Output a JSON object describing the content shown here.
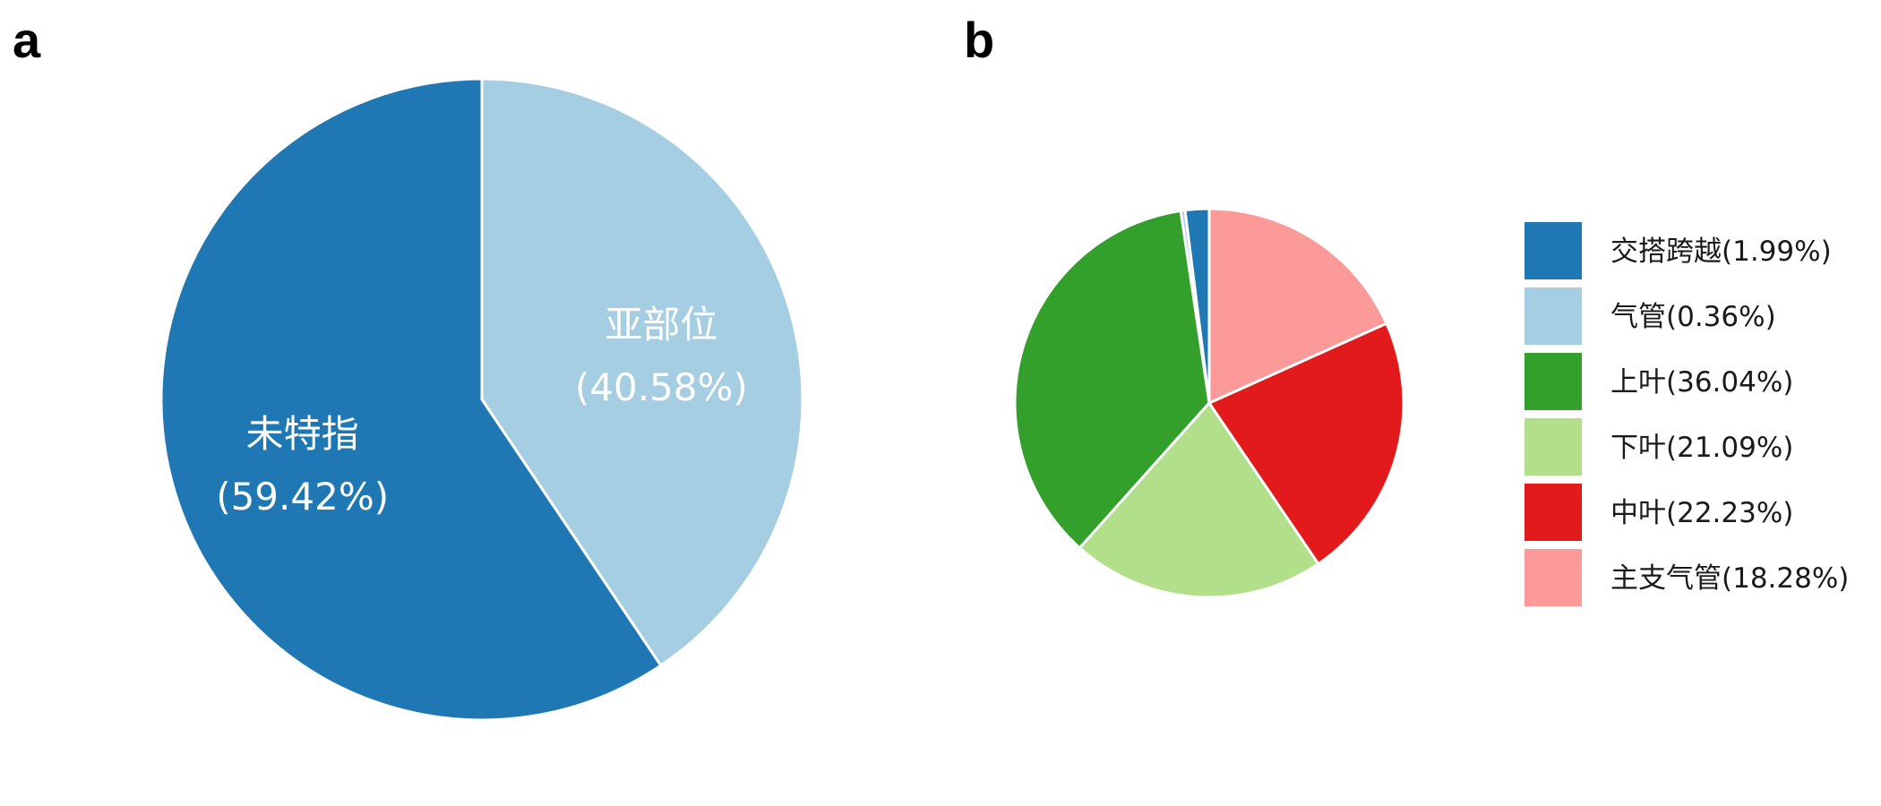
{
  "colors": {
    "background": "#ffffff",
    "slice_border": "#ffffff",
    "label_text": "#ffffff",
    "legend_text": "#1a1a1a"
  },
  "chart_data": [
    {
      "type": "pie",
      "panel_label": "a",
      "title": "",
      "start_angle_deg": 0,
      "direction": "clockwise",
      "slices": [
        {
          "label": "亚部位",
          "value": 40.58,
          "display": "(40.58%)",
          "color": "#a6cee3"
        },
        {
          "label": "未特指",
          "value": 59.42,
          "display": "(59.42%)",
          "color": "#1f78b4"
        }
      ],
      "legend": null,
      "labels_on_slices": true
    },
    {
      "type": "pie",
      "panel_label": "b",
      "title": "",
      "start_angle_deg": 0,
      "direction": "counterclockwise",
      "slices": [
        {
          "label": "交搭跨越",
          "value": 1.99,
          "legend_text": "交搭跨越(1.99%)",
          "color": "#1f78b4"
        },
        {
          "label": "气管",
          "value": 0.36,
          "legend_text": "气管(0.36%)",
          "color": "#a6cee3"
        },
        {
          "label": "上叶",
          "value": 36.04,
          "legend_text": "上叶(36.04%)",
          "color": "#33a02c"
        },
        {
          "label": "下叶",
          "value": 21.09,
          "legend_text": "下叶(21.09%)",
          "color": "#b2df8a"
        },
        {
          "label": "中叶",
          "value": 22.23,
          "legend_text": "中叶(22.23%)",
          "color": "#e31a1c"
        },
        {
          "label": "主支气管",
          "value": 18.28,
          "legend_text": "主支气管(18.28%)",
          "color": "#fb9a99"
        }
      ],
      "legend": "right",
      "labels_on_slices": false
    }
  ]
}
